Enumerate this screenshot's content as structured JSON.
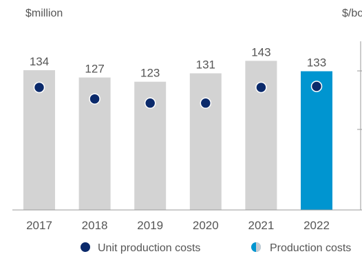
{
  "chart_data": {
    "type": "bar",
    "title": "",
    "ylabel_left": "$million",
    "ylabel_right": "$/bo",
    "categories": [
      "2017",
      "2018",
      "2019",
      "2020",
      "2021",
      "2022"
    ],
    "series": [
      {
        "name": "Production costs",
        "values": [
          134,
          127,
          123,
          131,
          143,
          133
        ],
        "colors": [
          "#d3d3d3",
          "#d3d3d3",
          "#d3d3d3",
          "#d3d3d3",
          "#d3d3d3",
          "#0095d0"
        ]
      },
      {
        "name": "Unit production costs",
        "type": "scatter",
        "axis": "right",
        "values": [
          117,
          106,
          102,
          102,
          117,
          118
        ],
        "color": "#0b2a6b"
      }
    ],
    "ylim": [
      0,
      150
    ],
    "grid": false,
    "legend": "bottom"
  }
}
